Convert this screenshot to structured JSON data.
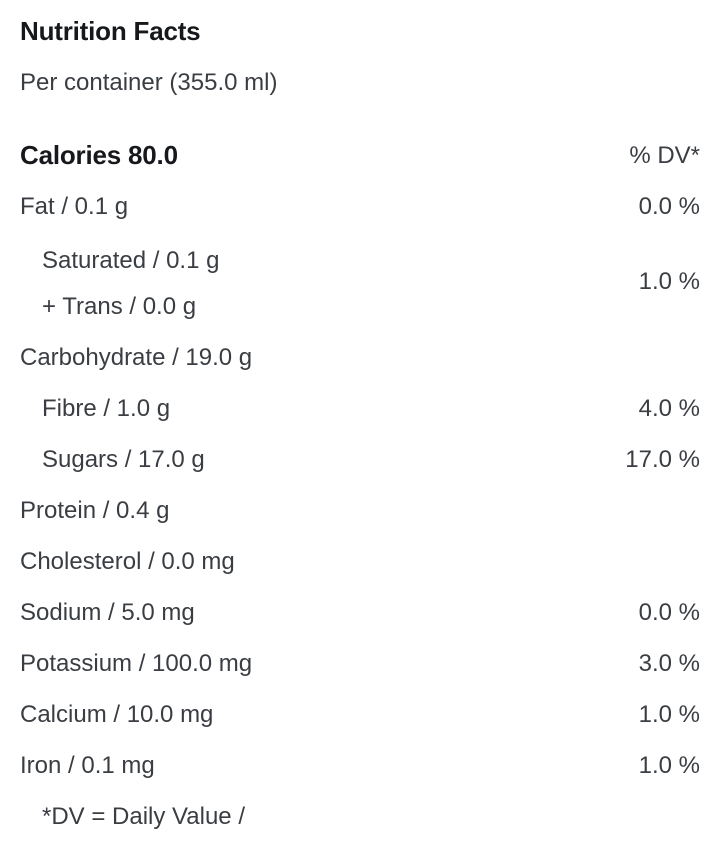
{
  "header": {
    "title": "Nutrition Facts",
    "serving": "Per container (355.0 ml)"
  },
  "table": {
    "calories_label": "Calories 80.0",
    "dv_header": "% DV*",
    "rows": [
      {
        "label": "Fat / 0.1 g",
        "dv": "0.0 %"
      },
      {
        "labels": [
          "Saturated / 0.1 g",
          "+ Trans / 0.0 g"
        ],
        "dv": "1.0 %"
      },
      {
        "label": "Carbohydrate / 19.0 g",
        "dv": ""
      },
      {
        "label": "Fibre / 1.0 g",
        "dv": "4.0 %"
      },
      {
        "label": "Sugars / 17.0 g",
        "dv": "17.0 %"
      },
      {
        "label": "Protein / 0.4 g",
        "dv": ""
      },
      {
        "label": "Cholesterol / 0.0 mg",
        "dv": ""
      },
      {
        "label": "Sodium / 5.0 mg",
        "dv": "0.0 %"
      },
      {
        "label": "Potassium / 100.0 mg",
        "dv": "3.0 %"
      },
      {
        "label": "Calcium / 10.0 mg",
        "dv": "1.0 %"
      },
      {
        "label": "Iron / 0.1 mg",
        "dv": "1.0 %"
      }
    ],
    "footnote": "*DV = Daily Value /"
  },
  "colors": {
    "heading_text": "#16181b",
    "body_text": "#3a3e43",
    "background": "#ffffff"
  }
}
